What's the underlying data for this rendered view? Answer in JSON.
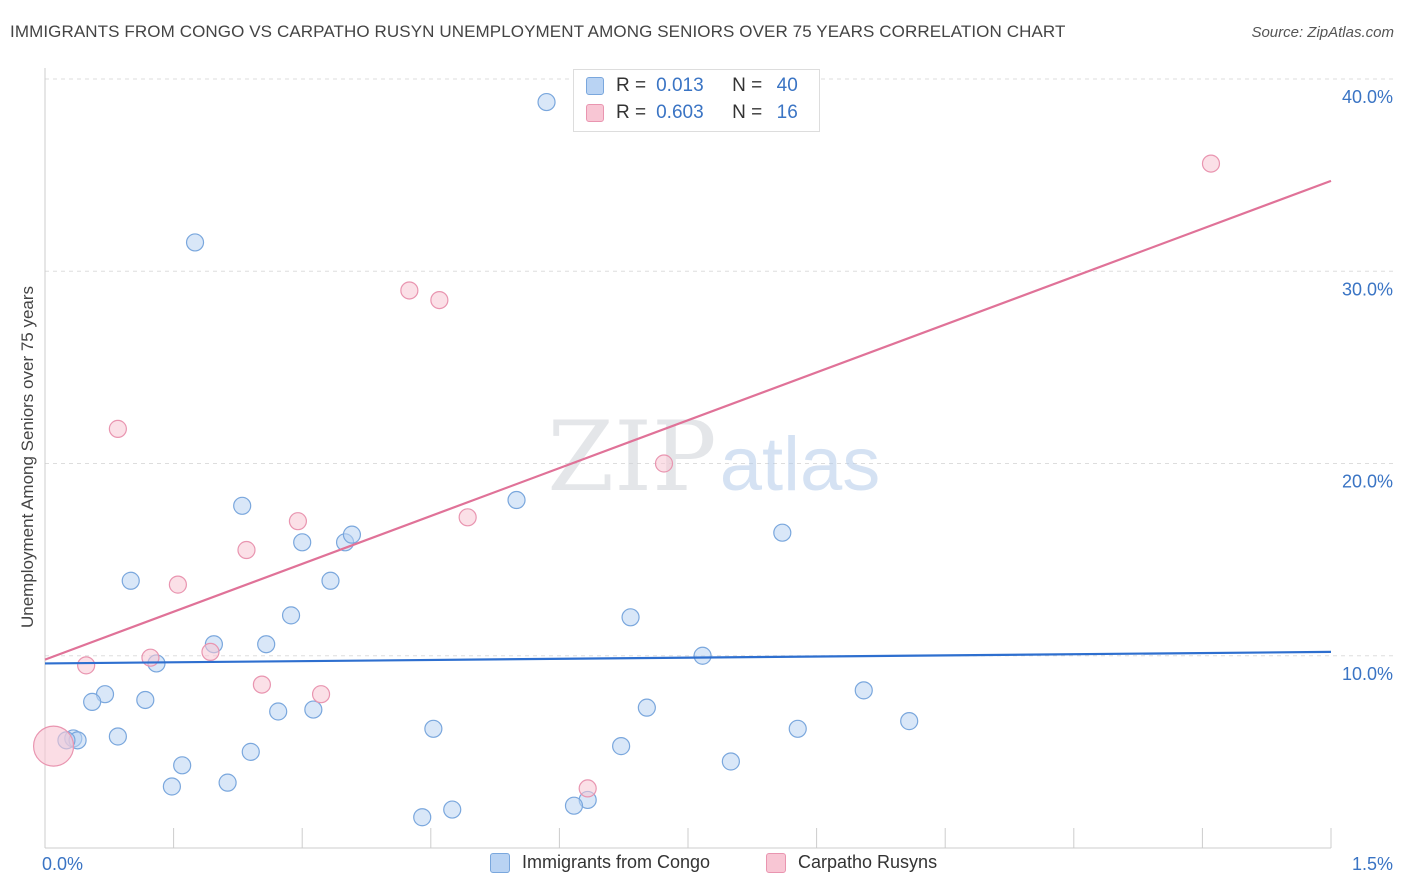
{
  "header": {
    "title": "IMMIGRANTS FROM CONGO VS CARPATHO RUSYN UNEMPLOYMENT AMONG SENIORS OVER 75 YEARS CORRELATION CHART",
    "source": "Source: ZipAtlas.com"
  },
  "watermark": {
    "zip": "ZIP",
    "atlas": "atlas"
  },
  "legend": {
    "r_label": "R =",
    "n_label": "N =",
    "rows": [
      {
        "r": "0.013",
        "n": "40"
      },
      {
        "r": "0.603",
        "n": "16"
      }
    ]
  },
  "colors": {
    "congo_fill": "#b9d3f3",
    "congo_stroke": "#7aa7dd",
    "congo_line": "#2e6fcf",
    "rusyn_fill": "#f8c6d4",
    "rusyn_stroke": "#e995b0",
    "rusyn_line": "#e07298",
    "grid": "#dddddd",
    "axis_text": "#3a74c4"
  },
  "chart_data": {
    "type": "scatter",
    "title": "IMMIGRANTS FROM CONGO VS CARPATHO RUSYN UNEMPLOYMENT AMONG SENIORS OVER 75 YEARS CORRELATION CHART",
    "xlabel": "",
    "ylabel": "Unemployment Among Seniors over 75 years",
    "xlim": [
      0,
      1.5
    ],
    "ylim": [
      0,
      40
    ],
    "x_tick_labels": [
      "0.0%",
      "1.5%"
    ],
    "y_tick_labels": [
      "10.0%",
      "20.0%",
      "30.0%",
      "40.0%"
    ],
    "y_ticks": [
      10,
      20,
      30,
      40
    ],
    "grid": true,
    "legend_position": "top-center",
    "series": [
      {
        "name": "Immigrants from Congo",
        "r": 0.013,
        "n": 40,
        "trend": {
          "x": [
            0,
            1.5
          ],
          "y": [
            9.6,
            10.2
          ]
        },
        "points": [
          {
            "x": 0.585,
            "y": 38.8
          },
          {
            "x": 0.175,
            "y": 31.5
          },
          {
            "x": 0.23,
            "y": 17.8
          },
          {
            "x": 0.55,
            "y": 18.1
          },
          {
            "x": 0.3,
            "y": 15.9
          },
          {
            "x": 0.35,
            "y": 15.9
          },
          {
            "x": 0.358,
            "y": 16.3
          },
          {
            "x": 0.1,
            "y": 13.9
          },
          {
            "x": 0.333,
            "y": 13.9
          },
          {
            "x": 0.287,
            "y": 12.1
          },
          {
            "x": 0.683,
            "y": 12.0
          },
          {
            "x": 0.86,
            "y": 16.4
          },
          {
            "x": 0.197,
            "y": 10.6
          },
          {
            "x": 0.258,
            "y": 10.6
          },
          {
            "x": 0.13,
            "y": 9.6
          },
          {
            "x": 0.767,
            "y": 10.0
          },
          {
            "x": 0.07,
            "y": 8.0
          },
          {
            "x": 0.055,
            "y": 7.6
          },
          {
            "x": 0.117,
            "y": 7.7
          },
          {
            "x": 0.272,
            "y": 7.1
          },
          {
            "x": 0.313,
            "y": 7.2
          },
          {
            "x": 0.702,
            "y": 7.3
          },
          {
            "x": 0.955,
            "y": 8.2
          },
          {
            "x": 1.008,
            "y": 6.6
          },
          {
            "x": 0.033,
            "y": 5.7
          },
          {
            "x": 0.038,
            "y": 5.6
          },
          {
            "x": 0.085,
            "y": 5.8
          },
          {
            "x": 0.453,
            "y": 6.2
          },
          {
            "x": 0.878,
            "y": 6.2
          },
          {
            "x": 0.24,
            "y": 5.0
          },
          {
            "x": 0.672,
            "y": 5.3
          },
          {
            "x": 0.8,
            "y": 4.5
          },
          {
            "x": 0.16,
            "y": 4.3
          },
          {
            "x": 0.148,
            "y": 3.2
          },
          {
            "x": 0.213,
            "y": 3.4
          },
          {
            "x": 0.633,
            "y": 2.5
          },
          {
            "x": 0.617,
            "y": 2.2
          },
          {
            "x": 0.475,
            "y": 2.0
          },
          {
            "x": 0.44,
            "y": 1.6
          },
          {
            "x": 0.025,
            "y": 5.6
          }
        ]
      },
      {
        "name": "Carpatho Rusyns",
        "r": 0.603,
        "n": 16,
        "trend": {
          "x": [
            0,
            1.5
          ],
          "y": [
            9.8,
            34.7
          ]
        },
        "points": [
          {
            "x": 1.36,
            "y": 35.6
          },
          {
            "x": 0.425,
            "y": 29.0
          },
          {
            "x": 0.46,
            "y": 28.5
          },
          {
            "x": 0.085,
            "y": 21.8
          },
          {
            "x": 0.722,
            "y": 20.0
          },
          {
            "x": 0.493,
            "y": 17.2
          },
          {
            "x": 0.295,
            "y": 17.0
          },
          {
            "x": 0.235,
            "y": 15.5
          },
          {
            "x": 0.155,
            "y": 13.7
          },
          {
            "x": 0.193,
            "y": 10.2
          },
          {
            "x": 0.123,
            "y": 9.9
          },
          {
            "x": 0.048,
            "y": 9.5
          },
          {
            "x": 0.253,
            "y": 8.5
          },
          {
            "x": 0.322,
            "y": 8.0
          },
          {
            "x": 0.633,
            "y": 3.1
          },
          {
            "x": 0.01,
            "y": 5.3
          }
        ]
      }
    ]
  }
}
